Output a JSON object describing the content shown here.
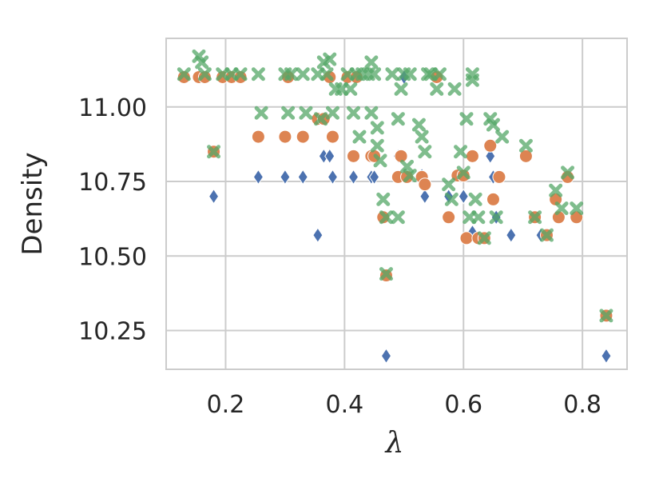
{
  "chart_data": {
    "type": "scatter",
    "xlabel": "λ",
    "ylabel": "Density",
    "xlim": [
      0.1,
      0.875
    ],
    "ylim": [
      10.12,
      11.23
    ],
    "xticks": [
      0.2,
      0.4,
      0.6,
      0.8
    ],
    "xtick_labels": [
      "0.2",
      "0.4",
      "0.6",
      "0.8"
    ],
    "yticks": [
      10.25,
      10.5,
      10.75,
      11.0
    ],
    "ytick_labels": [
      "10.25",
      "10.50",
      "10.75",
      "11.00"
    ],
    "grid": true,
    "colors": {
      "blue": "#4c72b0",
      "orange": "#dd8452",
      "green": "#55a868",
      "grid": "#cccccc",
      "frame": "#cccccc"
    },
    "series": [
      {
        "marker": "diamond",
        "color": "#4c72b0",
        "points": [
          [
            0.13,
            11.1
          ],
          [
            0.155,
            11.1
          ],
          [
            0.165,
            11.1
          ],
          [
            0.18,
            10.7
          ],
          [
            0.195,
            11.1
          ],
          [
            0.21,
            11.1
          ],
          [
            0.225,
            11.1
          ],
          [
            0.255,
            10.765
          ],
          [
            0.3,
            10.765
          ],
          [
            0.305,
            11.1
          ],
          [
            0.33,
            10.765
          ],
          [
            0.355,
            10.57
          ],
          [
            0.365,
            10.835
          ],
          [
            0.375,
            10.835
          ],
          [
            0.38,
            10.765
          ],
          [
            0.405,
            11.1
          ],
          [
            0.415,
            10.765
          ],
          [
            0.42,
            11.1
          ],
          [
            0.445,
            10.765
          ],
          [
            0.45,
            10.765
          ],
          [
            0.47,
            10.165
          ],
          [
            0.49,
            10.835
          ],
          [
            0.5,
            11.1
          ],
          [
            0.53,
            10.77
          ],
          [
            0.535,
            10.7
          ],
          [
            0.555,
            11.1
          ],
          [
            0.575,
            10.7
          ],
          [
            0.6,
            10.7
          ],
          [
            0.615,
            10.58
          ],
          [
            0.625,
            10.56
          ],
          [
            0.635,
            10.56
          ],
          [
            0.645,
            10.835
          ],
          [
            0.65,
            10.765
          ],
          [
            0.655,
            10.63
          ],
          [
            0.68,
            10.57
          ],
          [
            0.73,
            10.57
          ],
          [
            0.84,
            10.165
          ]
        ]
      },
      {
        "marker": "circle",
        "color": "#dd8452",
        "points": [
          [
            0.13,
            11.1
          ],
          [
            0.155,
            11.1
          ],
          [
            0.165,
            11.1
          ],
          [
            0.18,
            10.85
          ],
          [
            0.195,
            11.1
          ],
          [
            0.21,
            11.1
          ],
          [
            0.225,
            11.1
          ],
          [
            0.255,
            10.9
          ],
          [
            0.3,
            10.9
          ],
          [
            0.305,
            11.1
          ],
          [
            0.33,
            10.9
          ],
          [
            0.355,
            10.96
          ],
          [
            0.365,
            10.96
          ],
          [
            0.375,
            11.1
          ],
          [
            0.38,
            10.9
          ],
          [
            0.405,
            11.1
          ],
          [
            0.415,
            10.835
          ],
          [
            0.42,
            11.1
          ],
          [
            0.445,
            10.835
          ],
          [
            0.45,
            10.835
          ],
          [
            0.465,
            10.63
          ],
          [
            0.47,
            10.435
          ],
          [
            0.49,
            10.765
          ],
          [
            0.495,
            10.835
          ],
          [
            0.505,
            10.765
          ],
          [
            0.53,
            10.765
          ],
          [
            0.535,
            10.74
          ],
          [
            0.555,
            11.1
          ],
          [
            0.575,
            10.63
          ],
          [
            0.59,
            10.77
          ],
          [
            0.6,
            10.77
          ],
          [
            0.605,
            10.56
          ],
          [
            0.615,
            10.835
          ],
          [
            0.625,
            10.56
          ],
          [
            0.635,
            10.56
          ],
          [
            0.645,
            10.87
          ],
          [
            0.65,
            10.69
          ],
          [
            0.66,
            10.765
          ],
          [
            0.705,
            10.835
          ],
          [
            0.72,
            10.63
          ],
          [
            0.74,
            10.57
          ],
          [
            0.755,
            10.69
          ],
          [
            0.76,
            10.63
          ],
          [
            0.775,
            10.765
          ],
          [
            0.79,
            10.63
          ],
          [
            0.84,
            10.3
          ]
        ]
      },
      {
        "marker": "x",
        "color": "#55a868",
        "points": [
          [
            0.13,
            11.11
          ],
          [
            0.155,
            11.17
          ],
          [
            0.16,
            11.15
          ],
          [
            0.165,
            11.11
          ],
          [
            0.18,
            10.85
          ],
          [
            0.195,
            11.11
          ],
          [
            0.21,
            11.11
          ],
          [
            0.225,
            11.11
          ],
          [
            0.255,
            11.11
          ],
          [
            0.26,
            10.98
          ],
          [
            0.3,
            11.11
          ],
          [
            0.305,
            10.98
          ],
          [
            0.31,
            11.11
          ],
          [
            0.33,
            11.11
          ],
          [
            0.335,
            10.98
          ],
          [
            0.355,
            11.11
          ],
          [
            0.36,
            10.96
          ],
          [
            0.365,
            11.15
          ],
          [
            0.37,
            11.11
          ],
          [
            0.375,
            11.16
          ],
          [
            0.38,
            10.98
          ],
          [
            0.385,
            11.06
          ],
          [
            0.395,
            11.06
          ],
          [
            0.405,
            11.11
          ],
          [
            0.41,
            11.06
          ],
          [
            0.415,
            10.98
          ],
          [
            0.42,
            11.11
          ],
          [
            0.425,
            10.9
          ],
          [
            0.43,
            11.11
          ],
          [
            0.44,
            11.11
          ],
          [
            0.445,
            11.15
          ],
          [
            0.445,
            10.98
          ],
          [
            0.45,
            11.11
          ],
          [
            0.455,
            10.93
          ],
          [
            0.455,
            10.87
          ],
          [
            0.46,
            10.82
          ],
          [
            0.465,
            10.69
          ],
          [
            0.47,
            10.63
          ],
          [
            0.47,
            10.44
          ],
          [
            0.48,
            11.11
          ],
          [
            0.49,
            10.63
          ],
          [
            0.49,
            10.96
          ],
          [
            0.495,
            11.06
          ],
          [
            0.5,
            11.11
          ],
          [
            0.505,
            10.8
          ],
          [
            0.51,
            10.77
          ],
          [
            0.51,
            11.11
          ],
          [
            0.525,
            10.94
          ],
          [
            0.53,
            10.9
          ],
          [
            0.535,
            10.85
          ],
          [
            0.54,
            11.11
          ],
          [
            0.545,
            11.11
          ],
          [
            0.555,
            11.06
          ],
          [
            0.56,
            11.11
          ],
          [
            0.575,
            10.74
          ],
          [
            0.58,
            10.69
          ],
          [
            0.585,
            11.06
          ],
          [
            0.595,
            10.85
          ],
          [
            0.6,
            10.78
          ],
          [
            0.605,
            10.96
          ],
          [
            0.61,
            10.63
          ],
          [
            0.615,
            11.11
          ],
          [
            0.615,
            11.09
          ],
          [
            0.62,
            10.69
          ],
          [
            0.625,
            10.63
          ],
          [
            0.635,
            10.56
          ],
          [
            0.645,
            10.96
          ],
          [
            0.65,
            10.94
          ],
          [
            0.655,
            10.63
          ],
          [
            0.665,
            10.9
          ],
          [
            0.705,
            10.87
          ],
          [
            0.72,
            10.63
          ],
          [
            0.74,
            10.57
          ],
          [
            0.755,
            10.72
          ],
          [
            0.765,
            10.66
          ],
          [
            0.775,
            10.78
          ],
          [
            0.79,
            10.66
          ],
          [
            0.84,
            10.3
          ]
        ]
      }
    ]
  }
}
